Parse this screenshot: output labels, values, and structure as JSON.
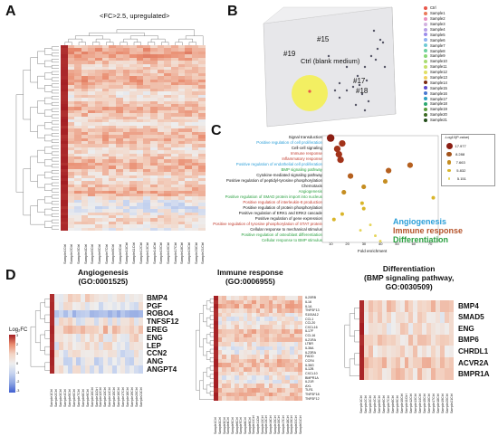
{
  "panels": {
    "A": {
      "letter": "A",
      "title": "<FC>2.5, upregulated>",
      "columns": [
        "Sample1Ctrl",
        "Sample2Ctrl",
        "Sample3Ctrl",
        "Sample4Ctrl",
        "Sample5Ctrl",
        "Sample6Ctrl",
        "Sample7Ctrl",
        "Sample8Ctrl",
        "Sample9Ctrl",
        "Sample10Ctrl",
        "Sample11Ctrl",
        "Sample12Ctrl",
        "Sample13Ctrl",
        "Sample14Ctrl",
        "Sample15Ctrl",
        "Sample16Ctrl",
        "Sample17Ctrl",
        "Sample18Ctrl",
        "Sample19Ctrl",
        "Sample20Ctrl",
        "Sample21Ctrl"
      ]
    },
    "B": {
      "letter": "B",
      "labels": {
        "s15": "#15",
        "s19": "#19",
        "s17": "#17",
        "s18": "#18",
        "ctrl": "Ctrl (blank medium)"
      },
      "legend": [
        {
          "name": "Ctrl",
          "color": "#e8574a"
        },
        {
          "name": "Sample1",
          "color": "#ea7a5a"
        },
        {
          "name": "Sample2",
          "color": "#e890c0"
        },
        {
          "name": "Sample3",
          "color": "#d2b2e0"
        },
        {
          "name": "Sample4",
          "color": "#b7a0e6"
        },
        {
          "name": "Sample5",
          "color": "#9c8cea"
        },
        {
          "name": "Sample6",
          "color": "#8fb3f0"
        },
        {
          "name": "Sample7",
          "color": "#6ec9d4"
        },
        {
          "name": "Sample8",
          "color": "#6ed0a0"
        },
        {
          "name": "Sample9",
          "color": "#88d878"
        },
        {
          "name": "Sample10",
          "color": "#a8dc72"
        },
        {
          "name": "Sample11",
          "color": "#c6df6a"
        },
        {
          "name": "Sample12",
          "color": "#e0df64"
        },
        {
          "name": "Sample13",
          "color": "#f0d060"
        },
        {
          "name": "Sample14",
          "color": "#7a2a10"
        },
        {
          "name": "Sample15",
          "color": "#5d4bd0"
        },
        {
          "name": "Sample16",
          "color": "#4a78d0"
        },
        {
          "name": "Sample17",
          "color": "#2d9fc0"
        },
        {
          "name": "Sample18",
          "color": "#2aa870"
        },
        {
          "name": "Sample19",
          "color": "#5a9a3c"
        },
        {
          "name": "Sample20",
          "color": "#3c6a22"
        },
        {
          "name": "Sample21",
          "color": "#224c18"
        }
      ]
    },
    "C": {
      "letter": "C",
      "terms": [
        {
          "label": "Signal transduction",
          "color": "#111111",
          "x": 10,
          "size": 6
        },
        {
          "label": "Positive regulation of cell proliferation",
          "color": "#2c9fd8",
          "x": 17,
          "size": 5
        },
        {
          "label": "Cell-cell signaling",
          "color": "#111111",
          "x": 14,
          "size": 5
        },
        {
          "label": "Immune response",
          "color": "#c0392b",
          "x": 15,
          "size": 5
        },
        {
          "label": "Inflammatory response",
          "color": "#c0392b",
          "x": 16,
          "size": 5
        },
        {
          "label": "Positive regulation of endothelial cell proliferation",
          "color": "#2c9fd8",
          "x": 58,
          "size": 4
        },
        {
          "label": "BMP signaling pathway",
          "color": "#2aa040",
          "x": 45,
          "size": 4
        },
        {
          "label": "Cytokine-mediated signaling pathway",
          "color": "#111111",
          "x": 22,
          "size": 4
        },
        {
          "label": "Positive regulation of peptidyl-tyrosine phosphorylation",
          "color": "#111111",
          "x": 43,
          "size": 3
        },
        {
          "label": "Chemotaxis",
          "color": "#111111",
          "x": 30,
          "size": 3
        },
        {
          "label": "Angiogenesis",
          "color": "#2aa040",
          "x": 18,
          "size": 3
        },
        {
          "label": "Positive regulation of SMAD protein import into nucleus",
          "color": "#2aa040",
          "x": 72,
          "size": 2
        },
        {
          "label": "Positive regulation of interleukin-8 production",
          "color": "#c0392b",
          "x": 29,
          "size": 2
        },
        {
          "label": "Positive regulation of protein phosphorylation",
          "color": "#111111",
          "x": 30,
          "size": 2
        },
        {
          "label": "Positive regulation of ERK1 and ERK2 cascade",
          "color": "#111111",
          "x": 17,
          "size": 2
        },
        {
          "label": "Positive regulation of gene expression",
          "color": "#111111",
          "x": 12,
          "size": 2
        },
        {
          "label": "Positive regulation of tyrosine phosphorylation of STAT protein",
          "color": "#c0392b",
          "x": 34,
          "size": 1
        },
        {
          "label": "Cellular response to mechanical stimulus",
          "color": "#111111",
          "x": 28,
          "size": 1
        },
        {
          "label": "Positive regulation of osteoblast differentiation",
          "color": "#2aa040",
          "x": 37,
          "size": 1
        },
        {
          "label": "Cellular response to BMP stimulus",
          "color": "#2aa040",
          "x": 40,
          "size": 1
        }
      ],
      "xaxis_label": "Fold enrichment",
      "ticks": [
        "10",
        "20",
        "30",
        "40",
        "50",
        "60",
        "70"
      ],
      "size_legend_title": "-Log10(P-value)",
      "size_legend": [
        "17.977",
        "8.288",
        "7.663",
        "5.832",
        "5.151"
      ],
      "categories": [
        {
          "label": "Angiogenesis",
          "color": "#2c9fd8"
        },
        {
          "label": "Immune response",
          "color": "#b5532a"
        },
        {
          "label": "Differentiation",
          "color": "#2aa040"
        }
      ]
    },
    "D": {
      "letter": "D",
      "colorbar_label": "Log₂FC",
      "colorbar_ticks": [
        "3",
        "2",
        "1",
        "0",
        "-1",
        "-2",
        "-3"
      ],
      "angiogenesis": {
        "title": "Angiogenesis\n(GO:0001525)",
        "genes": [
          "BMP4",
          "PGF",
          "ROBO4",
          "TNFSF12",
          "EREG",
          "ENG",
          "LEP",
          "CCN2",
          "ANG",
          "ANGPT4"
        ]
      },
      "immune": {
        "title": "Immune response\n(GO:0006955)",
        "genes": [
          "IL20RB",
          "IL16",
          "IL1A",
          "TNFSF13",
          "S100A12",
          "CCL1",
          "CCL20",
          "CXCL16",
          "IL17F",
          "CCL16",
          "IL21RA",
          "LTBR",
          "IL36A",
          "IL23RA",
          "FADD",
          "CCR4",
          "IL36G",
          "IL12B",
          "CXCL10",
          "BMPR1A",
          "IL21R",
          "AXL",
          "TLR1",
          "TNFSF18",
          "TNFSF12"
        ]
      },
      "differentiation": {
        "title": "Differentiation\n(BMP signaling pathway,\nGO:0030509)",
        "genes": [
          "BMP4",
          "SMAD5",
          "ENG",
          "BMP6",
          "CHRDL1",
          "ACVR2A",
          "BMPR1A"
        ]
      }
    }
  }
}
